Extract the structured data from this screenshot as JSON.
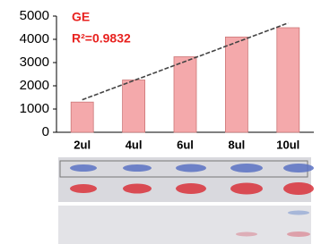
{
  "chart_data": {
    "type": "bar",
    "annotations": [
      "GE",
      "R²=0.9832"
    ],
    "categories": [
      "2ul",
      "4ul",
      "6ul",
      "8ul",
      "10ul"
    ],
    "values": [
      1300,
      2250,
      3250,
      4100,
      4500
    ],
    "color": "#f4a9ab",
    "ylim": [
      0,
      5000
    ],
    "yticks": [
      0,
      1000,
      2000,
      3000,
      4000,
      5000
    ],
    "trendline": {
      "values": [
        1400,
        4700
      ],
      "color": "#444"
    }
  }
}
